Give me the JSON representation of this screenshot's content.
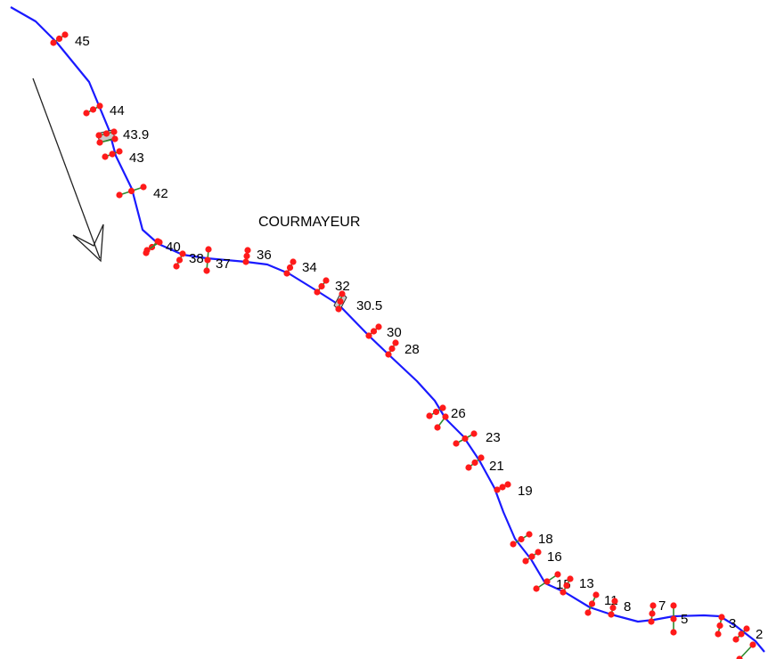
{
  "map": {
    "town_label": "COURMAYEUR",
    "route_color": "#1a1aff",
    "marker_color": "#ff1a1a",
    "tick_color": "#2e8b2e",
    "bridge_fill": "#c8c8c8",
    "arrow_color": "#222222",
    "direction_icon": "flow-direction-arrow-icon"
  },
  "stations": [
    {
      "id": "45",
      "label": "45"
    },
    {
      "id": "44",
      "label": "44"
    },
    {
      "id": "43.9",
      "label": "43.9"
    },
    {
      "id": "43",
      "label": "43"
    },
    {
      "id": "42",
      "label": "42"
    },
    {
      "id": "40",
      "label": "40"
    },
    {
      "id": "38",
      "label": "38"
    },
    {
      "id": "37",
      "label": "37"
    },
    {
      "id": "36",
      "label": "36"
    },
    {
      "id": "34",
      "label": "34"
    },
    {
      "id": "32",
      "label": "32"
    },
    {
      "id": "30.5",
      "label": "30.5"
    },
    {
      "id": "30",
      "label": "30"
    },
    {
      "id": "28",
      "label": "28"
    },
    {
      "id": "26",
      "label": "26"
    },
    {
      "id": "23",
      "label": "23"
    },
    {
      "id": "21",
      "label": "21"
    },
    {
      "id": "19",
      "label": "19"
    },
    {
      "id": "18",
      "label": "18"
    },
    {
      "id": "16",
      "label": "16"
    },
    {
      "id": "15",
      "label": "15"
    },
    {
      "id": "13",
      "label": "13"
    },
    {
      "id": "11",
      "label": "11"
    },
    {
      "id": "8",
      "label": "8"
    },
    {
      "id": "7",
      "label": "7"
    },
    {
      "id": "5",
      "label": "5"
    },
    {
      "id": "3",
      "label": "3"
    },
    {
      "id": "2",
      "label": "2"
    }
  ]
}
